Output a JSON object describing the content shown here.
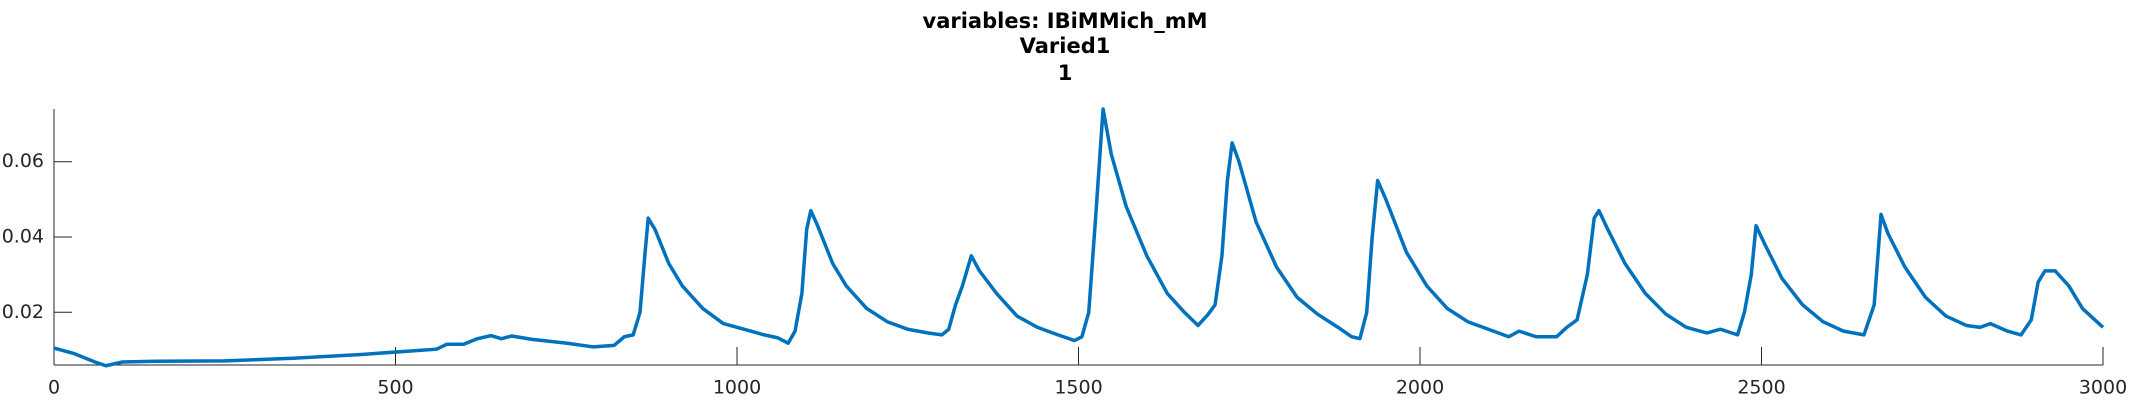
{
  "chart_data": {
    "type": "line",
    "title": "variables: IBiMMich_mM",
    "subtitles": [
      "Varied1",
      "1"
    ],
    "x": [
      0,
      30,
      60,
      76,
      100,
      150,
      250,
      350,
      450,
      520,
      560,
      575,
      600,
      620,
      640,
      655,
      670,
      700,
      750,
      790,
      820,
      835,
      848,
      858,
      865,
      870,
      880,
      900,
      920,
      950,
      980,
      1010,
      1040,
      1060,
      1075,
      1085,
      1095,
      1102,
      1108,
      1118,
      1140,
      1160,
      1190,
      1220,
      1250,
      1280,
      1300,
      1310,
      1320,
      1330,
      1343,
      1355,
      1380,
      1410,
      1440,
      1470,
      1494,
      1505,
      1515,
      1525,
      1536,
      1548,
      1570,
      1600,
      1630,
      1655,
      1675,
      1690,
      1700,
      1710,
      1718,
      1725,
      1735,
      1760,
      1790,
      1820,
      1850,
      1880,
      1900,
      1912,
      1922,
      1930,
      1938,
      1950,
      1980,
      2010,
      2040,
      2070,
      2100,
      2130,
      2145,
      2170,
      2200,
      2215,
      2230,
      2245,
      2255,
      2262,
      2275,
      2300,
      2330,
      2360,
      2390,
      2420,
      2440,
      2465,
      2475,
      2485,
      2492,
      2505,
      2530,
      2560,
      2590,
      2620,
      2650,
      2665,
      2675,
      2685,
      2710,
      2740,
      2770,
      2800,
      2820,
      2835,
      2860,
      2880,
      2895,
      2905,
      2915,
      2930,
      2950,
      2970,
      3000
    ],
    "series": [
      {
        "color": "#0072bd",
        "values": [
          0.0105,
          0.009,
          0.0068,
          0.0058,
          0.0068,
          0.007,
          0.0071,
          0.0078,
          0.0088,
          0.0097,
          0.0102,
          0.0115,
          0.0115,
          0.013,
          0.0138,
          0.013,
          0.0137,
          0.0128,
          0.0118,
          0.0108,
          0.0112,
          0.0135,
          0.014,
          0.02,
          0.035,
          0.045,
          0.042,
          0.033,
          0.027,
          0.021,
          0.017,
          0.0155,
          0.014,
          0.0132,
          0.0118,
          0.015,
          0.025,
          0.042,
          0.047,
          0.043,
          0.033,
          0.027,
          0.021,
          0.0175,
          0.0155,
          0.0145,
          0.014,
          0.0155,
          0.022,
          0.027,
          0.035,
          0.031,
          0.025,
          0.019,
          0.016,
          0.014,
          0.0125,
          0.0135,
          0.02,
          0.045,
          0.074,
          0.062,
          0.048,
          0.035,
          0.025,
          0.02,
          0.0165,
          0.0195,
          0.022,
          0.035,
          0.055,
          0.065,
          0.06,
          0.044,
          0.032,
          0.024,
          0.0195,
          0.016,
          0.0135,
          0.013,
          0.02,
          0.04,
          0.055,
          0.05,
          0.036,
          0.027,
          0.021,
          0.0175,
          0.0155,
          0.0135,
          0.015,
          0.0135,
          0.0135,
          0.016,
          0.018,
          0.03,
          0.045,
          0.047,
          0.042,
          0.033,
          0.025,
          0.0195,
          0.016,
          0.0145,
          0.0155,
          0.014,
          0.02,
          0.03,
          0.043,
          0.038,
          0.029,
          0.022,
          0.0175,
          0.015,
          0.014,
          0.022,
          0.046,
          0.041,
          0.032,
          0.024,
          0.019,
          0.0165,
          0.016,
          0.017,
          0.015,
          0.014,
          0.018,
          0.028,
          0.031,
          0.031,
          0.027,
          0.021,
          0.016
        ]
      }
    ],
    "xlim": [
      0,
      3000
    ],
    "xticks": [
      0,
      500,
      1000,
      1500,
      2000,
      2500,
      3000
    ],
    "ylim": [
      0.006,
      0.074
    ],
    "yticks": [
      0.02,
      0.04,
      0.06
    ]
  }
}
